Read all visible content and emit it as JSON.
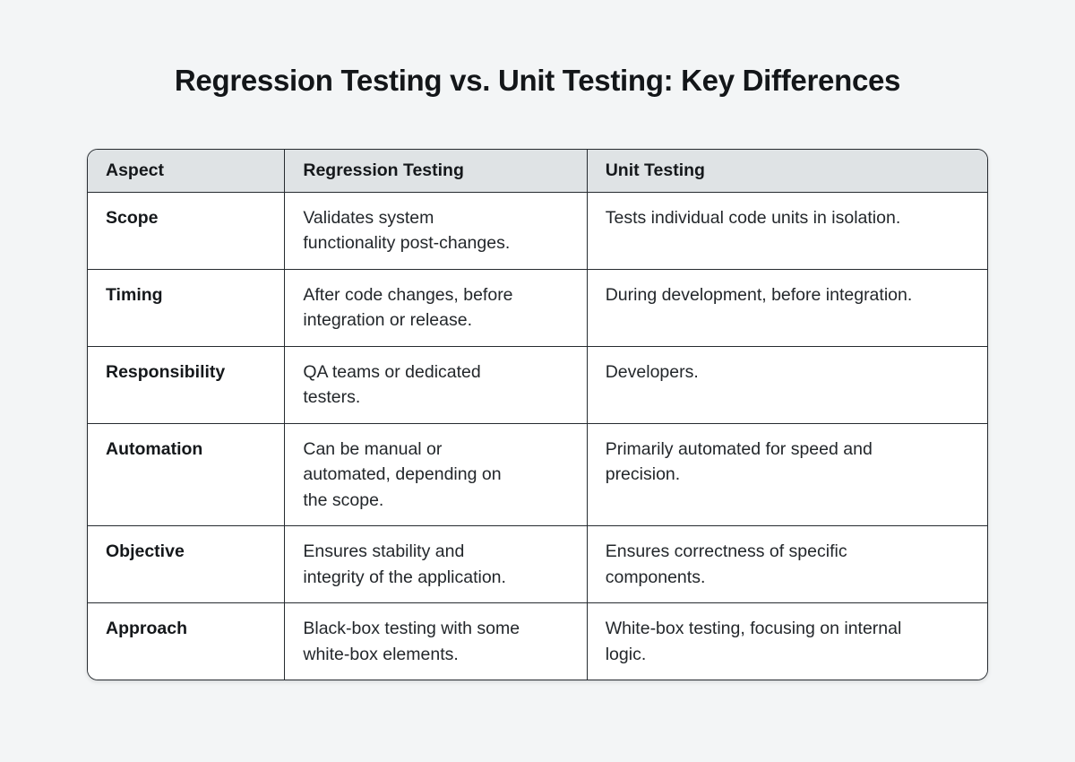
{
  "page": {
    "title": "Regression Testing vs. Unit Testing: Key Differences"
  },
  "table": {
    "headers": [
      "Aspect",
      "Regression Testing",
      "Unit Testing"
    ],
    "rows": [
      [
        "Scope",
        "Validates system\nfunctionality post-changes.",
        "Tests individual code units in isolation."
      ],
      [
        "Timing",
        "After code changes, before\nintegration or release.",
        "During development, before integration."
      ],
      [
        "Responsibility",
        "QA teams or dedicated\ntesters.",
        "Developers."
      ],
      [
        "Automation",
        "Can be manual or\nautomated, depending on\nthe scope.",
        "Primarily automated for speed and\nprecision."
      ],
      [
        "Objective",
        "Ensures stability and\nintegrity of the application.",
        "Ensures correctness of specific\ncomponents."
      ],
      [
        "Approach",
        "Black-box testing with some\nwhite-box elements.",
        "White-box testing, focusing on internal\nlogic."
      ]
    ]
  },
  "colors": {
    "page_background": "#f3f5f6",
    "header_background": "#dfe3e5",
    "cell_background": "#ffffff",
    "border": "#262b30",
    "title_text": "#131619",
    "body_text": "#23272b"
  }
}
